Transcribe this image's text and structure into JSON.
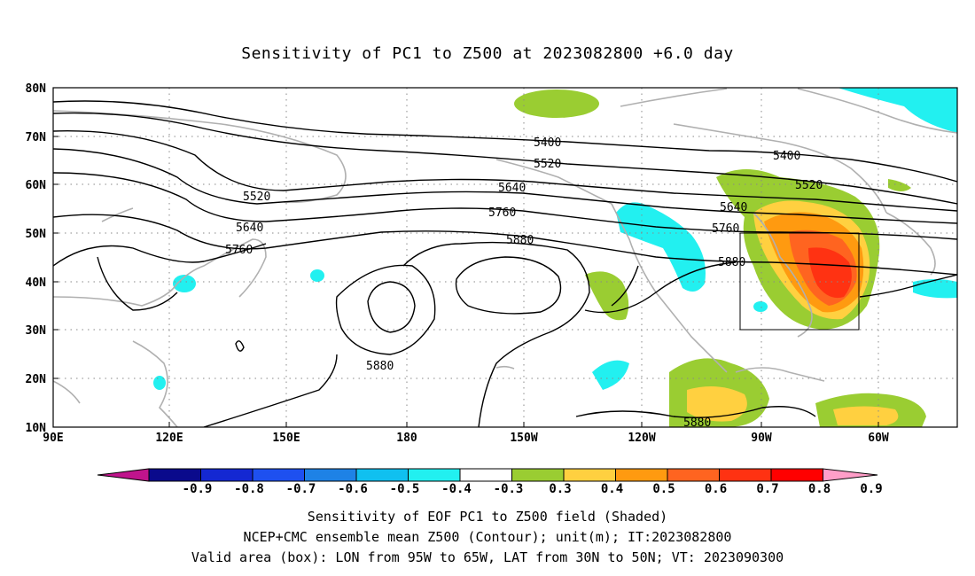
{
  "title": "Sensitivity of PC1 to Z500 at 2023082800 +6.0 day",
  "lat_labels": [
    "80N",
    "70N",
    "60N",
    "50N",
    "40N",
    "30N",
    "20N",
    "10N"
  ],
  "lon_labels": [
    "90E",
    "120E",
    "150E",
    "180",
    "150W",
    "120W",
    "90W",
    "60W"
  ],
  "contour_labels": [
    "5400",
    "5520",
    "5640",
    "5760",
    "5880",
    "5880",
    "5880",
    "5880",
    "5400",
    "5520",
    "5640",
    "5760",
    "5520",
    "5640",
    "5760",
    "5400"
  ],
  "box": {
    "lon_from": "95W",
    "lon_to": "65W",
    "lat_from": "30N",
    "lat_to": "50N"
  },
  "colorbar": {
    "ticks": [
      "-0.9",
      "-0.8",
      "-0.7",
      "-0.6",
      "-0.5",
      "-0.4",
      "-0.3",
      "0.3",
      "0.4",
      "0.5",
      "0.6",
      "0.7",
      "0.8",
      "0.9"
    ],
    "colors": [
      "#c0148c",
      "#0a0a8c",
      "#1428d2",
      "#1e50f0",
      "#1e82e6",
      "#10c0f0",
      "#22f0f0",
      "#ffffff",
      "#9acd32",
      "#ffd040",
      "#ff9a10",
      "#ff6420",
      "#ff3212",
      "#ff0000",
      "#ff9ec8"
    ]
  },
  "captions": [
    "Sensitivity of EOF PC1 to Z500 field (Shaded)",
    "NCEP+CMC ensemble mean Z500 (Contour); unit(m); IT:2023082800",
    "Valid area (box): LON from 95W to 65W, LAT from 30N to 50N; VT: 2023090300"
  ]
}
